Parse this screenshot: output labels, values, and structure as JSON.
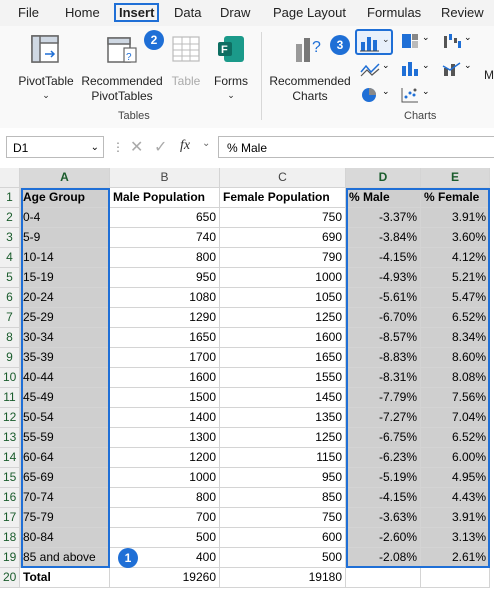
{
  "menu": [
    "File",
    "Home",
    "Insert",
    "Data",
    "Draw",
    "Page Layout",
    "Formulas",
    "Review"
  ],
  "ribbon": {
    "pivottable": "PivotTable",
    "recommended_pivot": [
      "Recommended",
      "PivotTables"
    ],
    "table": "Table",
    "forms": "Forms",
    "recommended_charts": [
      "Recommended",
      "Charts"
    ],
    "group_tables": "Tables",
    "group_charts": "Charts",
    "cut_off_label": "M"
  },
  "badges": [
    "1",
    "2",
    "3"
  ],
  "formula_bar": {
    "name_box": "D1",
    "fx": "fx",
    "content": "% Male"
  },
  "columns": [
    "A",
    "B",
    "C",
    "D",
    "E"
  ],
  "headers": [
    "Age Group",
    "Male Population",
    "Female Population",
    "% Male",
    "% Female"
  ],
  "rows": [
    [
      "0-4",
      "650",
      "750",
      "-3.37%",
      "3.91%"
    ],
    [
      "5-9",
      "740",
      "690",
      "-3.84%",
      "3.60%"
    ],
    [
      "10-14",
      "800",
      "790",
      "-4.15%",
      "4.12%"
    ],
    [
      "15-19",
      "950",
      "1000",
      "-4.93%",
      "5.21%"
    ],
    [
      "20-24",
      "1080",
      "1050",
      "-5.61%",
      "5.47%"
    ],
    [
      "25-29",
      "1290",
      "1250",
      "-6.70%",
      "6.52%"
    ],
    [
      "30-34",
      "1650",
      "1600",
      "-8.57%",
      "8.34%"
    ],
    [
      "35-39",
      "1700",
      "1650",
      "-8.83%",
      "8.60%"
    ],
    [
      "40-44",
      "1600",
      "1550",
      "-8.31%",
      "8.08%"
    ],
    [
      "45-49",
      "1500",
      "1450",
      "-7.79%",
      "7.56%"
    ],
    [
      "50-54",
      "1400",
      "1350",
      "-7.27%",
      "7.04%"
    ],
    [
      "55-59",
      "1300",
      "1250",
      "-6.75%",
      "6.52%"
    ],
    [
      "60-64",
      "1200",
      "1150",
      "-6.23%",
      "6.00%"
    ],
    [
      "65-69",
      "1000",
      "950",
      "-5.19%",
      "4.95%"
    ],
    [
      "70-74",
      "800",
      "850",
      "-4.15%",
      "4.43%"
    ],
    [
      "75-79",
      "700",
      "750",
      "-3.63%",
      "3.91%"
    ],
    [
      "80-84",
      "500",
      "600",
      "-2.60%",
      "3.13%"
    ],
    [
      "85 and above",
      "400",
      "500",
      "-2.08%",
      "2.61%"
    ]
  ],
  "total": [
    "Total",
    "19260",
    "19180"
  ]
}
